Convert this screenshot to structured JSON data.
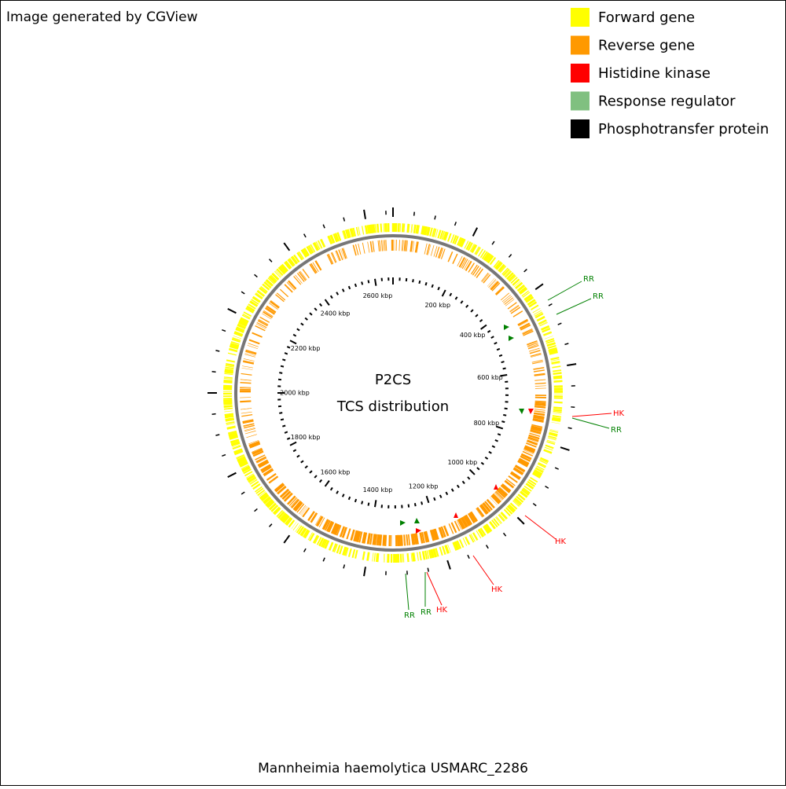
{
  "header": {
    "credit": "Image generated by CGView"
  },
  "legend": [
    {
      "label": "Forward gene",
      "color": "#ffff00"
    },
    {
      "label": "Reverse gene",
      "color": "#ff9900"
    },
    {
      "label": "Histidine kinase",
      "color": "#ff0000"
    },
    {
      "label": "Response regulator",
      "color": "#80c080"
    },
    {
      "label": "Phosphotransfer protein",
      "color": "#000000"
    }
  ],
  "map": {
    "title_lines": [
      "P2CS",
      "TCS distribution"
    ],
    "ruler_labels": [
      "200 kbp",
      "400 kbp",
      "600 kbp",
      "800 kbp",
      "1000 kbp",
      "1200 kbp",
      "1400 kbp",
      "1600 kbp",
      "1800 kbp",
      "2000 kbp",
      "2200 kbp",
      "2400 kbp",
      "2600 kbp"
    ],
    "callouts": [
      "RR",
      "RR",
      "HK",
      "RR",
      "HK",
      "HK",
      "HK",
      "RR",
      "RR"
    ]
  },
  "footer": {
    "caption": "Mannheimia haemolytica USMARC_2286"
  }
}
